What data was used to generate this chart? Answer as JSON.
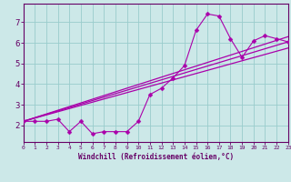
{
  "xlabel": "Windchill (Refroidissement éolien,°C)",
  "bg_color": "#cce8e8",
  "line_color": "#aa00aa",
  "grid_color": "#99cccc",
  "axis_color": "#660066",
  "tick_color": "#660066",
  "xmin": 0,
  "xmax": 23,
  "ymin": 1.2,
  "ymax": 7.9,
  "yticks": [
    2,
    3,
    4,
    5,
    6,
    7
  ],
  "line1_x": [
    0,
    1,
    2,
    3,
    4,
    5,
    6,
    7,
    8,
    9,
    10,
    11,
    12,
    13,
    14,
    15,
    16,
    17,
    18,
    19,
    20,
    21,
    22,
    23
  ],
  "line1_y": [
    2.2,
    2.2,
    2.2,
    2.3,
    1.7,
    2.2,
    1.6,
    1.7,
    1.7,
    1.7,
    2.2,
    3.5,
    3.8,
    4.3,
    4.9,
    6.6,
    7.4,
    7.3,
    6.2,
    5.3,
    6.1,
    6.35,
    6.2,
    6.05
  ],
  "line2_x": [
    0,
    23
  ],
  "line2_y": [
    2.2,
    6.05
  ],
  "line3_x": [
    0,
    23
  ],
  "line3_y": [
    2.2,
    6.3
  ],
  "line4_x": [
    0,
    23
  ],
  "line4_y": [
    2.2,
    5.75
  ]
}
